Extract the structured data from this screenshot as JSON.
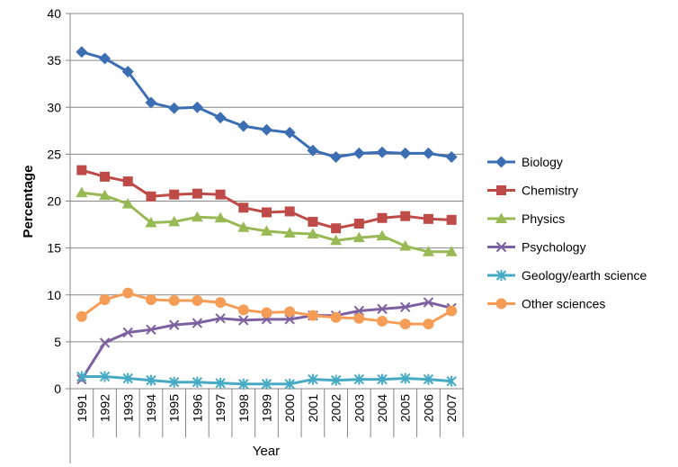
{
  "chart_data": {
    "type": "line",
    "xlabel": "Year",
    "ylabel": "Percentage",
    "ylim": [
      0,
      40
    ],
    "yticks": [
      0,
      5,
      10,
      15,
      20,
      25,
      30,
      35,
      40
    ],
    "x": [
      "1991",
      "1992",
      "1993",
      "1994",
      "1995",
      "1996",
      "1997",
      "1998",
      "1999",
      "2000",
      "2001",
      "2002",
      "2003",
      "2004",
      "2005",
      "2006",
      "2007"
    ],
    "grid": true,
    "legend_position": "right",
    "series": [
      {
        "name": "Biology",
        "color": "#3C6EB4",
        "marker": "diamond",
        "values": [
          35.9,
          35.2,
          33.8,
          30.5,
          29.9,
          30.0,
          28.9,
          28.0,
          27.6,
          27.3,
          25.4,
          24.7,
          25.1,
          25.2,
          25.1,
          25.1,
          24.7
        ]
      },
      {
        "name": "Chemistry",
        "color": "#BE4B48",
        "marker": "square",
        "values": [
          23.3,
          22.6,
          22.1,
          20.5,
          20.7,
          20.8,
          20.7,
          19.3,
          18.8,
          18.9,
          17.8,
          17.1,
          17.6,
          18.2,
          18.4,
          18.1,
          18.0
        ]
      },
      {
        "name": "Physics",
        "color": "#98B954",
        "marker": "triangle",
        "values": [
          20.9,
          20.6,
          19.7,
          17.7,
          17.8,
          18.3,
          18.2,
          17.2,
          16.8,
          16.6,
          16.5,
          15.8,
          16.1,
          16.3,
          15.2,
          14.6,
          14.6
        ]
      },
      {
        "name": "Psychology",
        "color": "#7D60A0",
        "marker": "x",
        "values": [
          1.0,
          4.9,
          6.0,
          6.3,
          6.8,
          7.0,
          7.5,
          7.3,
          7.4,
          7.4,
          7.8,
          7.8,
          8.3,
          8.5,
          8.7,
          9.2,
          8.6
        ]
      },
      {
        "name": "Geology/earth science",
        "color": "#46AAC5",
        "marker": "star",
        "values": [
          1.3,
          1.3,
          1.1,
          0.9,
          0.7,
          0.7,
          0.6,
          0.5,
          0.5,
          0.5,
          1.0,
          0.9,
          1.0,
          1.0,
          1.1,
          1.0,
          0.8
        ]
      },
      {
        "name": "Other sciences",
        "color": "#F59D56",
        "marker": "circle",
        "values": [
          7.7,
          9.5,
          10.2,
          9.5,
          9.4,
          9.4,
          9.2,
          8.4,
          8.1,
          8.2,
          7.8,
          7.6,
          7.5,
          7.2,
          6.9,
          6.9,
          8.3
        ]
      }
    ]
  }
}
